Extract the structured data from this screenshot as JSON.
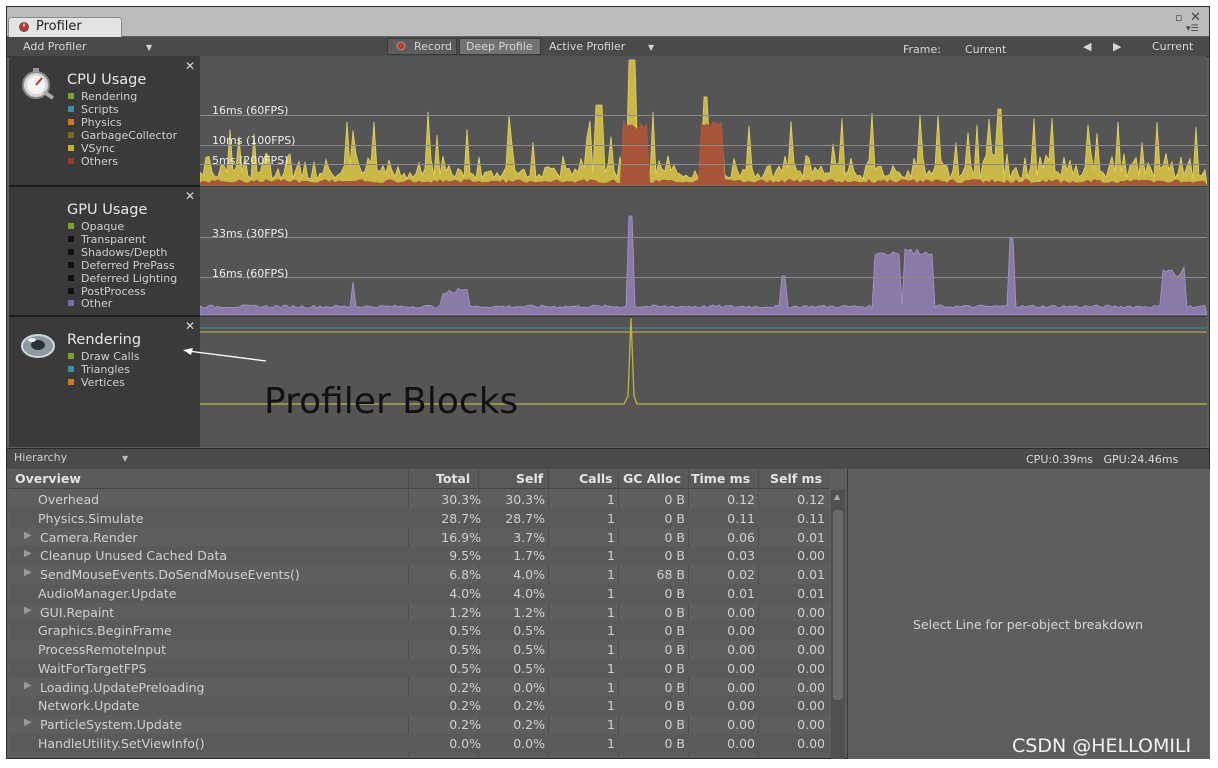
{
  "window": {
    "tab_title": "Profiler"
  },
  "toolbar": {
    "add_profiler": "Add Profiler",
    "record": "Record",
    "deep_profile": "Deep Profile",
    "active_profiler": "Active Profiler",
    "frame_label": "Frame:",
    "frame_value": "Current",
    "current_button": "Current"
  },
  "cpu": {
    "title": "CPU Usage",
    "legend": [
      {
        "label": "Rendering",
        "color": "#7fa22f"
      },
      {
        "label": "Scripts",
        "color": "#3a8ea6"
      },
      {
        "label": "Physics",
        "color": "#d07a1a"
      },
      {
        "label": "GarbageCollector",
        "color": "#7a6a1a"
      },
      {
        "label": "VSync",
        "color": "#c8b020"
      },
      {
        "label": "Others",
        "color": "#9a3a22"
      }
    ],
    "gridlines": [
      "16ms (60FPS)",
      "10ms (100FPS)",
      "5ms (200FPS)"
    ]
  },
  "gpu": {
    "title": "GPU Usage",
    "legend": [
      {
        "label": "Opaque",
        "color": "#7fa22f"
      },
      {
        "label": "Transparent",
        "color": "#111111"
      },
      {
        "label": "Shadows/Depth",
        "color": "#111111"
      },
      {
        "label": "Deferred PrePass",
        "color": "#111111"
      },
      {
        "label": "Deferred Lighting",
        "color": "#111111"
      },
      {
        "label": "PostProcess",
        "color": "#111111"
      },
      {
        "label": "Other",
        "color": "#7a68b0"
      }
    ],
    "gridlines": [
      "33ms (30FPS)",
      "16ms (60FPS)"
    ]
  },
  "rendering": {
    "title": "Rendering",
    "legend": [
      {
        "label": "Draw Calls",
        "color": "#7fa22f"
      },
      {
        "label": "Triangles",
        "color": "#3a8ea6"
      },
      {
        "label": "Vertices",
        "color": "#d07a1a"
      }
    ]
  },
  "annotation": "Profiler Blocks",
  "hierarchy": {
    "selector": "Hierarchy",
    "cpu_time": "CPU:0.39ms",
    "gpu_time": "GPU:24.46ms"
  },
  "table": {
    "headers": [
      "Overview",
      "Total",
      "Self",
      "Calls",
      "GC Alloc",
      "Time ms",
      "Self ms"
    ],
    "rows": [
      {
        "name": "Overhead",
        "expand": false,
        "total": "30.3%",
        "self": "30.3%",
        "calls": "1",
        "gc": "0 B",
        "time": "0.12",
        "selfms": "0.12"
      },
      {
        "name": "Physics.Simulate",
        "expand": false,
        "total": "28.7%",
        "self": "28.7%",
        "calls": "1",
        "gc": "0 B",
        "time": "0.11",
        "selfms": "0.11"
      },
      {
        "name": "Camera.Render",
        "expand": true,
        "total": "16.9%",
        "self": "3.7%",
        "calls": "1",
        "gc": "0 B",
        "time": "0.06",
        "selfms": "0.01"
      },
      {
        "name": "Cleanup Unused Cached Data",
        "expand": true,
        "total": "9.5%",
        "self": "1.7%",
        "calls": "1",
        "gc": "0 B",
        "time": "0.03",
        "selfms": "0.00"
      },
      {
        "name": "SendMouseEvents.DoSendMouseEvents()",
        "expand": true,
        "total": "6.8%",
        "self": "4.0%",
        "calls": "1",
        "gc": "68 B",
        "time": "0.02",
        "selfms": "0.01"
      },
      {
        "name": "AudioManager.Update",
        "expand": false,
        "total": "4.0%",
        "self": "4.0%",
        "calls": "1",
        "gc": "0 B",
        "time": "0.01",
        "selfms": "0.01"
      },
      {
        "name": "GUI.Repaint",
        "expand": true,
        "total": "1.2%",
        "self": "1.2%",
        "calls": "1",
        "gc": "0 B",
        "time": "0.00",
        "selfms": "0.00"
      },
      {
        "name": "Graphics.BeginFrame",
        "expand": false,
        "total": "0.5%",
        "self": "0.5%",
        "calls": "1",
        "gc": "0 B",
        "time": "0.00",
        "selfms": "0.00"
      },
      {
        "name": "ProcessRemoteInput",
        "expand": false,
        "total": "0.5%",
        "self": "0.5%",
        "calls": "1",
        "gc": "0 B",
        "time": "0.00",
        "selfms": "0.00"
      },
      {
        "name": "WaitForTargetFPS",
        "expand": false,
        "total": "0.5%",
        "self": "0.5%",
        "calls": "1",
        "gc": "0 B",
        "time": "0.00",
        "selfms": "0.00"
      },
      {
        "name": "Loading.UpdatePreloading",
        "expand": true,
        "total": "0.2%",
        "self": "0.0%",
        "calls": "1",
        "gc": "0 B",
        "time": "0.00",
        "selfms": "0.00"
      },
      {
        "name": "Network.Update",
        "expand": false,
        "total": "0.2%",
        "self": "0.2%",
        "calls": "1",
        "gc": "0 B",
        "time": "0.00",
        "selfms": "0.00"
      },
      {
        "name": "ParticleSystem.Update",
        "expand": true,
        "total": "0.2%",
        "self": "0.2%",
        "calls": "1",
        "gc": "0 B",
        "time": "0.00",
        "selfms": "0.00"
      },
      {
        "name": "HandleUtility.SetViewInfo()",
        "expand": false,
        "total": "0.0%",
        "self": "0.0%",
        "calls": "1",
        "gc": "0 B",
        "time": "0.00",
        "selfms": "0.00"
      }
    ]
  },
  "detail": {
    "message": "Select Line for per-object breakdown"
  },
  "watermark": "CSDN @HELLOMILI"
}
